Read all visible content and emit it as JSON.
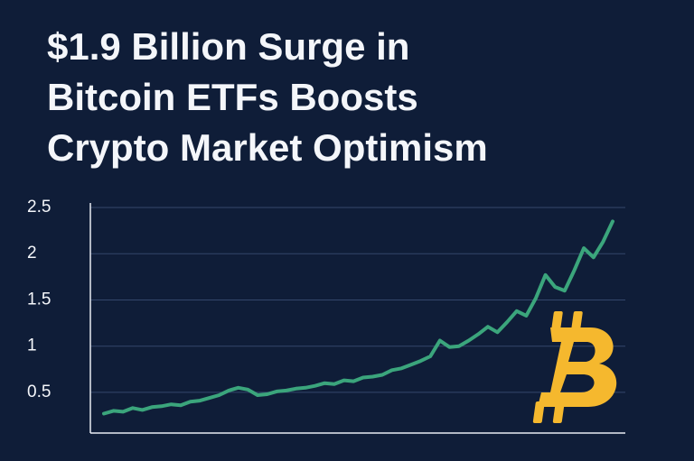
{
  "chart_data": {
    "type": "line",
    "title": [
      "$1.9 Billion Surge in",
      "Bitcoin ETFs Boosts",
      "Crypto Market Optimism"
    ],
    "series": [
      {
        "color": "#3ba57c",
        "values": [
          0.27,
          0.3,
          0.29,
          0.33,
          0.31,
          0.34,
          0.35,
          0.37,
          0.36,
          0.4,
          0.41,
          0.44,
          0.47,
          0.52,
          0.55,
          0.53,
          0.47,
          0.48,
          0.51,
          0.52,
          0.54,
          0.55,
          0.57,
          0.6,
          0.59,
          0.63,
          0.62,
          0.66,
          0.67,
          0.69,
          0.74,
          0.76,
          0.8,
          0.84,
          0.89,
          1.06,
          0.99,
          1.0,
          1.06,
          1.13,
          1.21,
          1.15,
          1.26,
          1.38,
          1.33,
          1.52,
          1.77,
          1.64,
          1.6,
          1.82,
          2.06,
          1.96,
          2.13,
          2.35
        ]
      }
    ],
    "ylim": [
      0.06,
      2.5
    ],
    "yticks": [
      0.5,
      1,
      1.5,
      2,
      2.5
    ],
    "grid": true
  }
}
